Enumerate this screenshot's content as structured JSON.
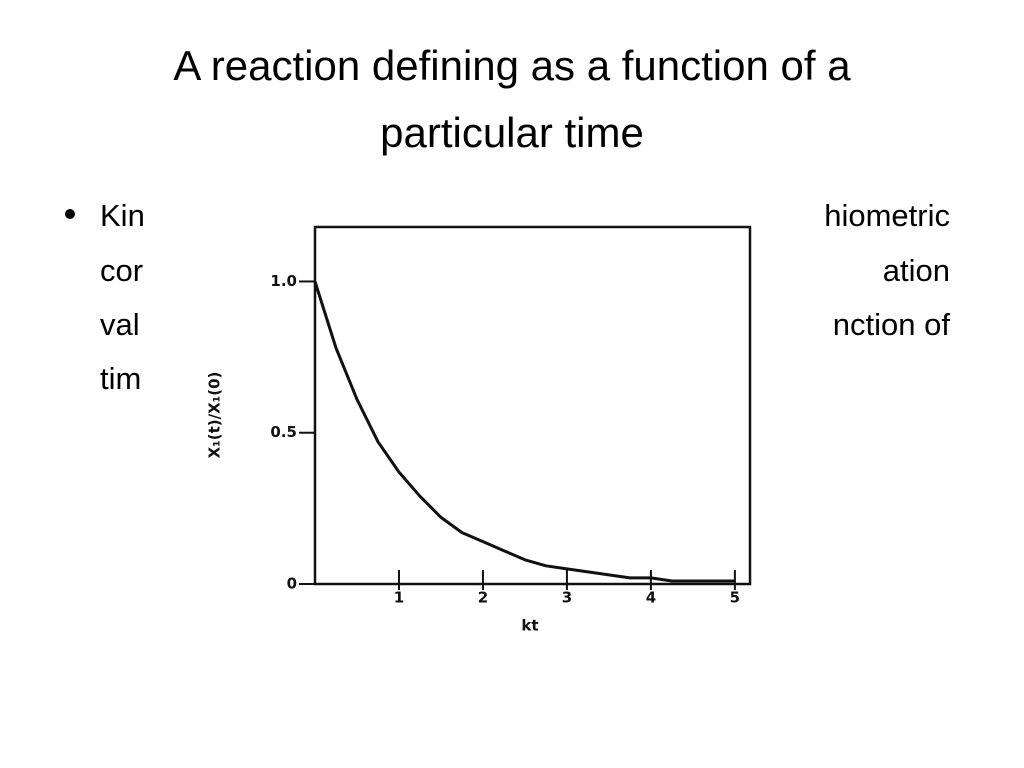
{
  "slide": {
    "title_lines": [
      "A reaction defining as a function of a",
      "particular time"
    ],
    "bullet_left": [
      "Kin",
      "cor",
      "val",
      "tim"
    ],
    "bullet_right": [
      "hiometric",
      "ation",
      "nction of"
    ]
  },
  "chart_data": {
    "type": "line",
    "x": [
      0,
      0.25,
      0.5,
      0.75,
      1,
      1.25,
      1.5,
      1.75,
      2,
      2.25,
      2.5,
      2.75,
      3,
      3.25,
      3.5,
      3.75,
      4,
      4.25,
      4.5,
      4.75,
      5
    ],
    "values": [
      1,
      0.78,
      0.61,
      0.47,
      0.37,
      0.29,
      0.22,
      0.17,
      0.14,
      0.11,
      0.08,
      0.06,
      0.05,
      0.04,
      0.03,
      0.02,
      0.02,
      0.01,
      0.01,
      0.01,
      0.01
    ],
    "color": "#111111",
    "xlabel": "kt",
    "ylabel": "X₁(t)/X₁(0)",
    "xlim": [
      0,
      5.18
    ],
    "ylim": [
      0,
      1.18
    ],
    "xticks": [
      1,
      2,
      3,
      4,
      5
    ],
    "yticks": [
      0,
      {
        "value": 0.5,
        "label": "0.5"
      },
      {
        "value": 1,
        "label": "1.0"
      }
    ]
  }
}
